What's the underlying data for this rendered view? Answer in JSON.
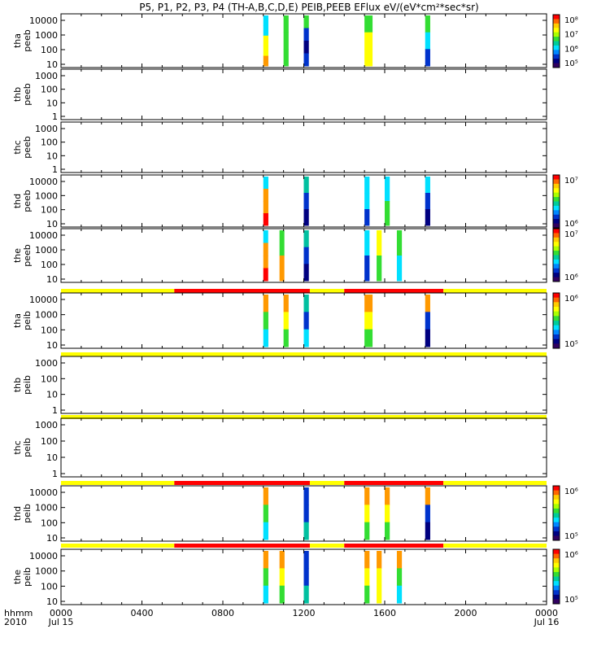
{
  "title": "P5, P1, P2, P3, P4 (TH-A,B,C,D,E) PEIB,PEEB EFlux eV/(eV*cm²*sec*sr)",
  "footer": {
    "left_top": "hhmm",
    "left_bottom": "2010",
    "x_tick_labels": [
      "0000",
      "0400",
      "0800",
      "1200",
      "1600",
      "2000",
      "0000"
    ],
    "date_start": "Jul 15",
    "date_end": "Jul 16"
  },
  "chart_data": {
    "type": "heatmap",
    "title": "P5, P1, P2, P3, P4 (TH-A,B,C,D,E) PEIB,PEEB EFlux eV/(eV*cm²*sec*sr)",
    "x_axis": {
      "unit": "hhmm",
      "range": [
        0,
        24
      ],
      "ticks": [
        0,
        4,
        8,
        12,
        16,
        20,
        24
      ]
    },
    "colors": {
      "yellow": "#ffff00",
      "red": "#ff0000",
      "cyan": "#00e0ff",
      "green": "#33dd33",
      "blue": "#0033cc",
      "navy": "#000080",
      "orange": "#ff9900",
      "teal": "#00c0a0"
    },
    "panels": [
      {
        "label_top": "tha",
        "label_bottom": "peeb",
        "yticks": [
          "10000",
          "1000",
          "100",
          "10"
        ],
        "colorbar": [
          "10⁸",
          "10⁷",
          "10⁶",
          "10⁵"
        ],
        "bursts": [
          {
            "start": 10.0,
            "end": 10.25,
            "colors": [
              "#00e0ff",
              "#00e0ff",
              "#ffff00",
              "#ffff00",
              "#ff9900"
            ]
          },
          {
            "start": 11.0,
            "end": 11.25,
            "colors": [
              "#33dd33",
              "#33dd33",
              "#33dd33"
            ]
          },
          {
            "start": 12.0,
            "end": 12.25,
            "colors": [
              "#33dd33",
              "#0033cc",
              "#000080",
              "#0033cc"
            ]
          },
          {
            "start": 15.0,
            "end": 15.4,
            "colors": [
              "#33dd33",
              "#ffff00",
              "#ffff00"
            ]
          },
          {
            "start": 18.0,
            "end": 18.25,
            "colors": [
              "#33dd33",
              "#00e0ff",
              "#0033cc"
            ]
          }
        ]
      },
      {
        "label_top": "thb",
        "label_bottom": "peeb",
        "yticks": [
          "1000",
          "100",
          "10",
          "1"
        ],
        "bursts": []
      },
      {
        "label_top": "thc",
        "label_bottom": "peeb",
        "yticks": [
          "1000",
          "100",
          "10",
          "1"
        ],
        "bursts": []
      },
      {
        "label_top": "thd",
        "label_bottom": "peeb",
        "yticks": [
          "10000",
          "1000",
          "100",
          "10"
        ],
        "colorbar": [
          "10⁷",
          "10⁶"
        ],
        "bursts": [
          {
            "start": 10.0,
            "end": 10.25,
            "colors": [
              "#00e0ff",
              "#ff9900",
              "#ff9900",
              "#ff0000"
            ]
          },
          {
            "start": 12.0,
            "end": 12.25,
            "colors": [
              "#00c0a0",
              "#0033cc",
              "#000080"
            ]
          },
          {
            "start": 15.0,
            "end": 15.25,
            "colors": [
              "#00e0ff",
              "#00e0ff",
              "#0033cc"
            ]
          },
          {
            "start": 16.0,
            "end": 16.25,
            "colors": [
              "#00e0ff",
              "#33dd33"
            ]
          },
          {
            "start": 18.0,
            "end": 18.25,
            "colors": [
              "#00e0ff",
              "#0033cc",
              "#000080"
            ]
          }
        ]
      },
      {
        "label_top": "the",
        "label_bottom": "peeb",
        "yticks": [
          "10000",
          "1000",
          "100",
          "10"
        ],
        "colorbar": [
          "10⁷",
          "10⁶"
        ],
        "bursts": [
          {
            "start": 10.0,
            "end": 10.2,
            "colors": [
              "#00e0ff",
              "#ff9900",
              "#ff9900",
              "#ff0000"
            ]
          },
          {
            "start": 10.8,
            "end": 11.0,
            "colors": [
              "#33dd33",
              "#ff9900"
            ]
          },
          {
            "start": 12.0,
            "end": 12.25,
            "colors": [
              "#00c0a0",
              "#0033cc",
              "#000080"
            ]
          },
          {
            "start": 15.0,
            "end": 15.25,
            "colors": [
              "#00e0ff",
              "#0033cc"
            ]
          },
          {
            "start": 15.6,
            "end": 15.85,
            "colors": [
              "#ffff00",
              "#33dd33"
            ]
          },
          {
            "start": 16.6,
            "end": 16.85,
            "colors": [
              "#33dd33",
              "#00e0ff"
            ]
          }
        ]
      },
      {
        "label_top": "tha",
        "label_bottom": "peib",
        "yticks": [
          "10000",
          "1000",
          "100",
          "10"
        ],
        "colorbar": [
          "10⁶",
          "10⁵"
        ],
        "mode_bar": [
          {
            "start": 0.0,
            "end": 5.6,
            "color": "#ffff00"
          },
          {
            "start": 5.6,
            "end": 12.3,
            "color": "#ff0000"
          },
          {
            "start": 12.3,
            "end": 14.0,
            "color": "#ffff00"
          },
          {
            "start": 14.0,
            "end": 18.9,
            "color": "#ff0000"
          },
          {
            "start": 18.9,
            "end": 24.0,
            "color": "#ffff00"
          }
        ],
        "bursts": [
          {
            "start": 10.0,
            "end": 10.25,
            "colors": [
              "#ff9900",
              "#33dd33",
              "#00e0ff"
            ]
          },
          {
            "start": 11.0,
            "end": 11.25,
            "colors": [
              "#ff9900",
              "#ffff00",
              "#33dd33"
            ]
          },
          {
            "start": 12.0,
            "end": 12.25,
            "colors": [
              "#00c0a0",
              "#0033cc",
              "#00e0ff"
            ]
          },
          {
            "start": 15.0,
            "end": 15.4,
            "colors": [
              "#ff9900",
              "#ffff00",
              "#33dd33"
            ]
          },
          {
            "start": 18.0,
            "end": 18.25,
            "colors": [
              "#ff9900",
              "#0033cc",
              "#000080"
            ]
          }
        ]
      },
      {
        "label_top": "thb",
        "label_bottom": "peib",
        "yticks": [
          "1000",
          "100",
          "10",
          "1"
        ],
        "mode_bar": [
          {
            "start": 0.0,
            "end": 24.0,
            "color": "#ffff00"
          }
        ],
        "bursts": []
      },
      {
        "label_top": "thc",
        "label_bottom": "peib",
        "yticks": [
          "1000",
          "100",
          "10",
          "1"
        ],
        "mode_bar": [
          {
            "start": 0.0,
            "end": 24.0,
            "color": "#ffff00"
          }
        ],
        "bursts": []
      },
      {
        "label_top": "thd",
        "label_bottom": "peib",
        "yticks": [
          "10000",
          "1000",
          "100",
          "10"
        ],
        "colorbar": [
          "10⁶",
          "10⁵"
        ],
        "mode_bar": [
          {
            "start": 0.0,
            "end": 5.6,
            "color": "#ffff00"
          },
          {
            "start": 5.6,
            "end": 12.3,
            "color": "#ff0000"
          },
          {
            "start": 12.3,
            "end": 14.0,
            "color": "#ffff00"
          },
          {
            "start": 14.0,
            "end": 18.9,
            "color": "#ff0000"
          },
          {
            "start": 18.9,
            "end": 24.0,
            "color": "#ffff00"
          }
        ],
        "bursts": [
          {
            "start": 10.0,
            "end": 10.25,
            "colors": [
              "#ff9900",
              "#33dd33",
              "#00e0ff"
            ]
          },
          {
            "start": 12.0,
            "end": 12.25,
            "colors": [
              "#0033cc",
              "#0033cc",
              "#00c0a0"
            ]
          },
          {
            "start": 15.0,
            "end": 15.25,
            "colors": [
              "#ff9900",
              "#ffff00",
              "#33dd33"
            ]
          },
          {
            "start": 16.0,
            "end": 16.25,
            "colors": [
              "#ff9900",
              "#ffff00",
              "#33dd33"
            ]
          },
          {
            "start": 18.0,
            "end": 18.25,
            "colors": [
              "#ff9900",
              "#0033cc",
              "#000080"
            ]
          }
        ]
      },
      {
        "label_top": "the",
        "label_bottom": "peib",
        "yticks": [
          "10000",
          "1000",
          "100",
          "10"
        ],
        "colorbar": [
          "10⁶",
          "10⁵"
        ],
        "mode_bar": [
          {
            "start": 0.0,
            "end": 5.6,
            "color": "#ffff00"
          },
          {
            "start": 5.6,
            "end": 12.3,
            "color": "#ff0000"
          },
          {
            "start": 12.3,
            "end": 14.0,
            "color": "#ffff00"
          },
          {
            "start": 14.0,
            "end": 18.9,
            "color": "#ff0000"
          },
          {
            "start": 18.9,
            "end": 24.0,
            "color": "#ffff00"
          }
        ],
        "bursts": [
          {
            "start": 10.0,
            "end": 10.25,
            "colors": [
              "#ff9900",
              "#33dd33",
              "#00e0ff"
            ]
          },
          {
            "start": 10.8,
            "end": 11.05,
            "colors": [
              "#ff9900",
              "#ffff00",
              "#33dd33"
            ]
          },
          {
            "start": 12.0,
            "end": 12.25,
            "colors": [
              "#0033cc",
              "#0033cc",
              "#00c0a0"
            ]
          },
          {
            "start": 15.0,
            "end": 15.25,
            "colors": [
              "#ff9900",
              "#ffff00",
              "#33dd33"
            ]
          },
          {
            "start": 15.6,
            "end": 15.85,
            "colors": [
              "#ff9900",
              "#ffff00",
              "#ffff00"
            ]
          },
          {
            "start": 16.6,
            "end": 16.85,
            "colors": [
              "#ff9900",
              "#33dd33",
              "#00e0ff"
            ]
          }
        ]
      }
    ]
  }
}
